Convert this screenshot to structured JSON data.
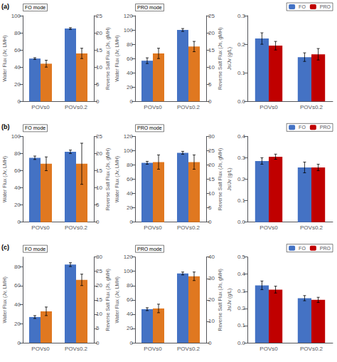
{
  "chart_data": [
    {
      "type": "bar",
      "title": "FO mode",
      "annotations": [
        "(a)"
      ],
      "categories": [
        "POVs0",
        "POVs0.2"
      ],
      "ylabel": "Water Flux (Jv, LMH)",
      "y2label": "Reverse Salt Flux (Js, gMH)",
      "series": [
        {
          "color": "#4472C4",
          "values": [
            50,
            85
          ],
          "errors": [
            1.0,
            1.0
          ]
        },
        {
          "color": "#E07820",
          "values": [
            11,
            14
          ],
          "errors": [
            1.0,
            1.5
          ],
          "axis": "y2"
        }
      ],
      "ylim": [
        0,
        100
      ],
      "yticks": [
        0,
        20,
        40,
        60,
        80,
        100
      ],
      "y2lim": [
        0,
        25
      ],
      "y2ticks": [
        0,
        5,
        10,
        15,
        20,
        25
      ],
      "grid": false
    },
    {
      "type": "bar",
      "title": "PRO mode",
      "categories": [
        "POVs0",
        "POVs0.2"
      ],
      "ylabel": "Water Flux (Jv, LMH)",
      "y2label": "Reverse Salt Flux (Js, gMH)",
      "series": [
        {
          "color": "#4472C4",
          "values": [
            57,
            100
          ],
          "errors": [
            4.0,
            2.0
          ]
        },
        {
          "color": "#E07820",
          "values": [
            14,
            16
          ],
          "errors": [
            1.5,
            1.5
          ],
          "axis": "y2"
        }
      ],
      "ylim": [
        0,
        120
      ],
      "yticks": [
        0,
        20,
        40,
        60,
        80,
        100,
        120
      ],
      "y2lim": [
        0,
        25
      ],
      "y2ticks": [
        0,
        5,
        10,
        15,
        20,
        25
      ],
      "grid": false
    },
    {
      "type": "bar",
      "categories": [
        "POVs0",
        "POVs0.2"
      ],
      "ylabel": "Js/Jv (g/L)",
      "series": [
        {
          "name": "FO",
          "color": "#4472C4",
          "values": [
            0.22,
            0.155
          ],
          "errors": [
            0.02,
            0.015
          ]
        },
        {
          "name": "PRO",
          "color": "#C00000",
          "values": [
            0.195,
            0.165
          ],
          "errors": [
            0.015,
            0.02
          ]
        }
      ],
      "ylim": [
        0,
        0.3
      ],
      "yticks": [
        {
          "value": 0,
          "label": "0.0"
        },
        0.1,
        0.2,
        0.3
      ],
      "legend": "upper right",
      "grid": false
    },
    {
      "type": "bar",
      "title": "FO mode",
      "annotations": [
        "(b)"
      ],
      "categories": [
        "POVs0",
        "POVs0.2"
      ],
      "ylabel": "Water Flux (Jv, LMH)",
      "y2label": "Reverse Salt Flux (Js, gMH)",
      "series": [
        {
          "color": "#4472C4",
          "values": [
            75,
            82
          ],
          "errors": [
            2.0,
            2.0
          ]
        },
        {
          "color": "#E07820",
          "values": [
            17,
            17
          ],
          "errors": [
            2.0,
            6.0
          ],
          "axis": "y2"
        }
      ],
      "ylim": [
        0,
        100
      ],
      "yticks": [
        0,
        20,
        40,
        60,
        80,
        100
      ],
      "y2lim": [
        0,
        25
      ],
      "y2ticks": [
        0,
        5,
        10,
        15,
        20,
        25
      ],
      "grid": false
    },
    {
      "type": "bar",
      "title": "PRO mode",
      "categories": [
        "POVs0",
        "POVs0.2"
      ],
      "ylabel": "Water Flux (Jv, LMH)",
      "y2label": "Reverse Salt Flux (Js, gMH)",
      "series": [
        {
          "color": "#4472C4",
          "values": [
            83,
            97
          ],
          "errors": [
            2.0,
            2.0
          ]
        },
        {
          "color": "#E07820",
          "values": [
            21,
            21
          ],
          "errors": [
            2.5,
            2.5
          ],
          "axis": "y2"
        }
      ],
      "ylim": [
        0,
        120
      ],
      "yticks": [
        0,
        20,
        40,
        60,
        80,
        100,
        120
      ],
      "y2lim": [
        0,
        30
      ],
      "y2ticks": [
        0,
        5,
        10,
        15,
        20,
        25,
        30
      ],
      "grid": false
    },
    {
      "type": "bar",
      "categories": [
        "POVs0",
        "POVs0.2"
      ],
      "ylabel": "Js/Jv (g/L)",
      "series": [
        {
          "name": "FO",
          "color": "#4472C4",
          "values": [
            0.285,
            0.255
          ],
          "errors": [
            0.015,
            0.025
          ]
        },
        {
          "name": "PRO",
          "color": "#C00000",
          "values": [
            0.305,
            0.255
          ],
          "errors": [
            0.012,
            0.015
          ]
        }
      ],
      "ylim": [
        0,
        0.4
      ],
      "yticks": [
        {
          "value": 0,
          "label": "0.0"
        },
        0.1,
        0.2,
        0.3,
        0.4
      ],
      "legend": "upper right",
      "grid": false
    },
    {
      "type": "bar",
      "title": "FO mode",
      "annotations": [
        "(c)"
      ],
      "categories": [
        "POVs0",
        "POVs0.2"
      ],
      "ylabel": "Water Flux (Jv, LMH)",
      "y2label": "Reverse Salt Flux (Js, gMH)",
      "series": [
        {
          "color": "#4472C4",
          "values": [
            27,
            82
          ],
          "errors": [
            1.5,
            2.0
          ]
        },
        {
          "color": "#E07820",
          "values": [
            11,
            22
          ],
          "errors": [
            1.5,
            2.0
          ],
          "axis": "y2"
        }
      ],
      "ylim": [
        0,
        90
      ],
      "yticks": [
        0,
        20,
        40,
        60,
        80
      ],
      "y2lim": [
        0,
        30
      ],
      "y2ticks": [
        0,
        5,
        10,
        15,
        20,
        25,
        30
      ],
      "grid": false
    },
    {
      "type": "bar",
      "title": "PRO mode",
      "categories": [
        "POVs0",
        "POVs0.2"
      ],
      "ylabel": "Water Flux (Jv, LMH)",
      "y2label": "Reverse Salt Flux (Js, gMH)",
      "series": [
        {
          "color": "#4472C4",
          "values": [
            47,
            97
          ],
          "errors": [
            2.0,
            2.0
          ]
        },
        {
          "color": "#E07820",
          "values": [
            16,
            31
          ],
          "errors": [
            2.0,
            2.0
          ],
          "axis": "y2"
        }
      ],
      "ylim": [
        0,
        120
      ],
      "yticks": [
        0,
        20,
        40,
        60,
        80,
        100,
        120
      ],
      "y2lim": [
        0,
        40
      ],
      "y2ticks": [
        0,
        10,
        20,
        30,
        40
      ],
      "grid": false
    },
    {
      "type": "bar",
      "categories": [
        "POVs0",
        "POVs0.2"
      ],
      "ylabel": "Js/Jv (g/L)",
      "series": [
        {
          "name": "FO",
          "color": "#4472C4",
          "values": [
            0.335,
            0.26
          ],
          "errors": [
            0.025,
            0.015
          ]
        },
        {
          "name": "PRO",
          "color": "#C00000",
          "values": [
            0.31,
            0.25
          ],
          "errors": [
            0.02,
            0.015
          ]
        }
      ],
      "ylim": [
        0,
        0.5
      ],
      "yticks": [
        {
          "value": 0,
          "label": "0.0"
        },
        0.1,
        0.2,
        0.3,
        0.4,
        0.5
      ],
      "legend": "upper right",
      "grid": false
    }
  ]
}
